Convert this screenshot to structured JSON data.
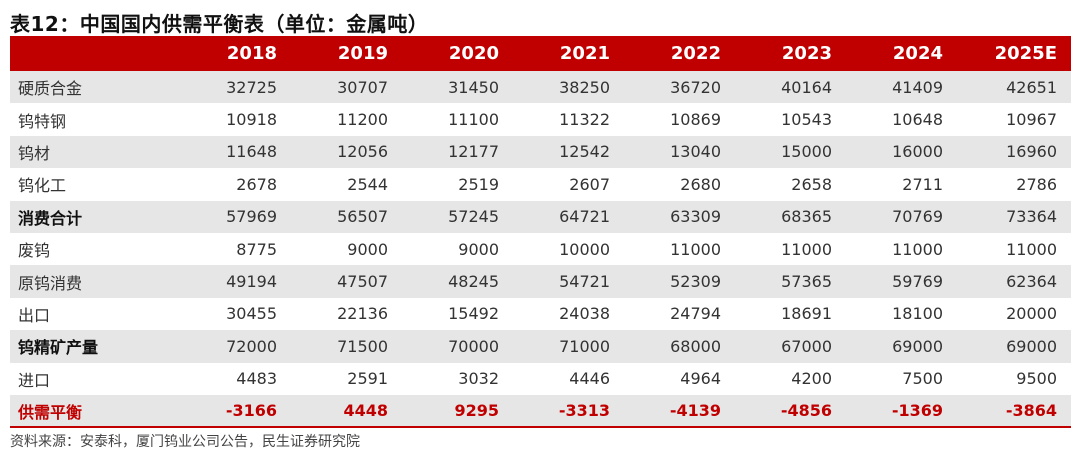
{
  "title": "表12：中国国内供需平衡表（单位：金属吨）",
  "table": {
    "header": [
      "",
      "2018",
      "2019",
      "2020",
      "2021",
      "2022",
      "2023",
      "2024",
      "2025E"
    ],
    "rows": [
      {
        "label": "硬质合金",
        "values": [
          "32725",
          "30707",
          "31450",
          "38250",
          "36720",
          "40164",
          "41409",
          "42651"
        ]
      },
      {
        "label": "钨特钢",
        "values": [
          "10918",
          "11200",
          "11100",
          "11322",
          "10869",
          "10543",
          "10648",
          "10967"
        ]
      },
      {
        "label": "钨材",
        "values": [
          "11648",
          "12056",
          "12177",
          "12542",
          "13040",
          "15000",
          "16000",
          "16960"
        ]
      },
      {
        "label": "钨化工",
        "values": [
          "2678",
          "2544",
          "2519",
          "2607",
          "2680",
          "2658",
          "2711",
          "2786"
        ]
      },
      {
        "label": "消费合计",
        "values": [
          "57969",
          "56507",
          "57245",
          "64721",
          "63309",
          "68365",
          "70769",
          "73364"
        ]
      },
      {
        "label": "废钨",
        "values": [
          "8775",
          "9000",
          "9000",
          "10000",
          "11000",
          "11000",
          "11000",
          "11000"
        ]
      },
      {
        "label": "原钨消费",
        "values": [
          "49194",
          "47507",
          "48245",
          "54721",
          "52309",
          "57365",
          "59769",
          "62364"
        ]
      },
      {
        "label": "出口",
        "values": [
          "30455",
          "22136",
          "15492",
          "24038",
          "24794",
          "18691",
          "18100",
          "20000"
        ]
      },
      {
        "label": "钨精矿产量",
        "values": [
          "72000",
          "71500",
          "70000",
          "71000",
          "68000",
          "67000",
          "69000",
          "69000"
        ]
      },
      {
        "label": "进口",
        "values": [
          "4483",
          "2591",
          "3032",
          "4446",
          "4964",
          "4200",
          "7500",
          "9500"
        ]
      },
      {
        "label": "供需平衡",
        "values": [
          "-3166",
          "4448",
          "9295",
          "-3313",
          "-4139",
          "-4856",
          "-1369",
          "-3864"
        ]
      }
    ]
  },
  "source": "资料来源：安泰科，厦门钨业公司公告，民生证券研究院",
  "colors": {
    "accent": "#c00000",
    "shade": "#e6e6e6"
  }
}
